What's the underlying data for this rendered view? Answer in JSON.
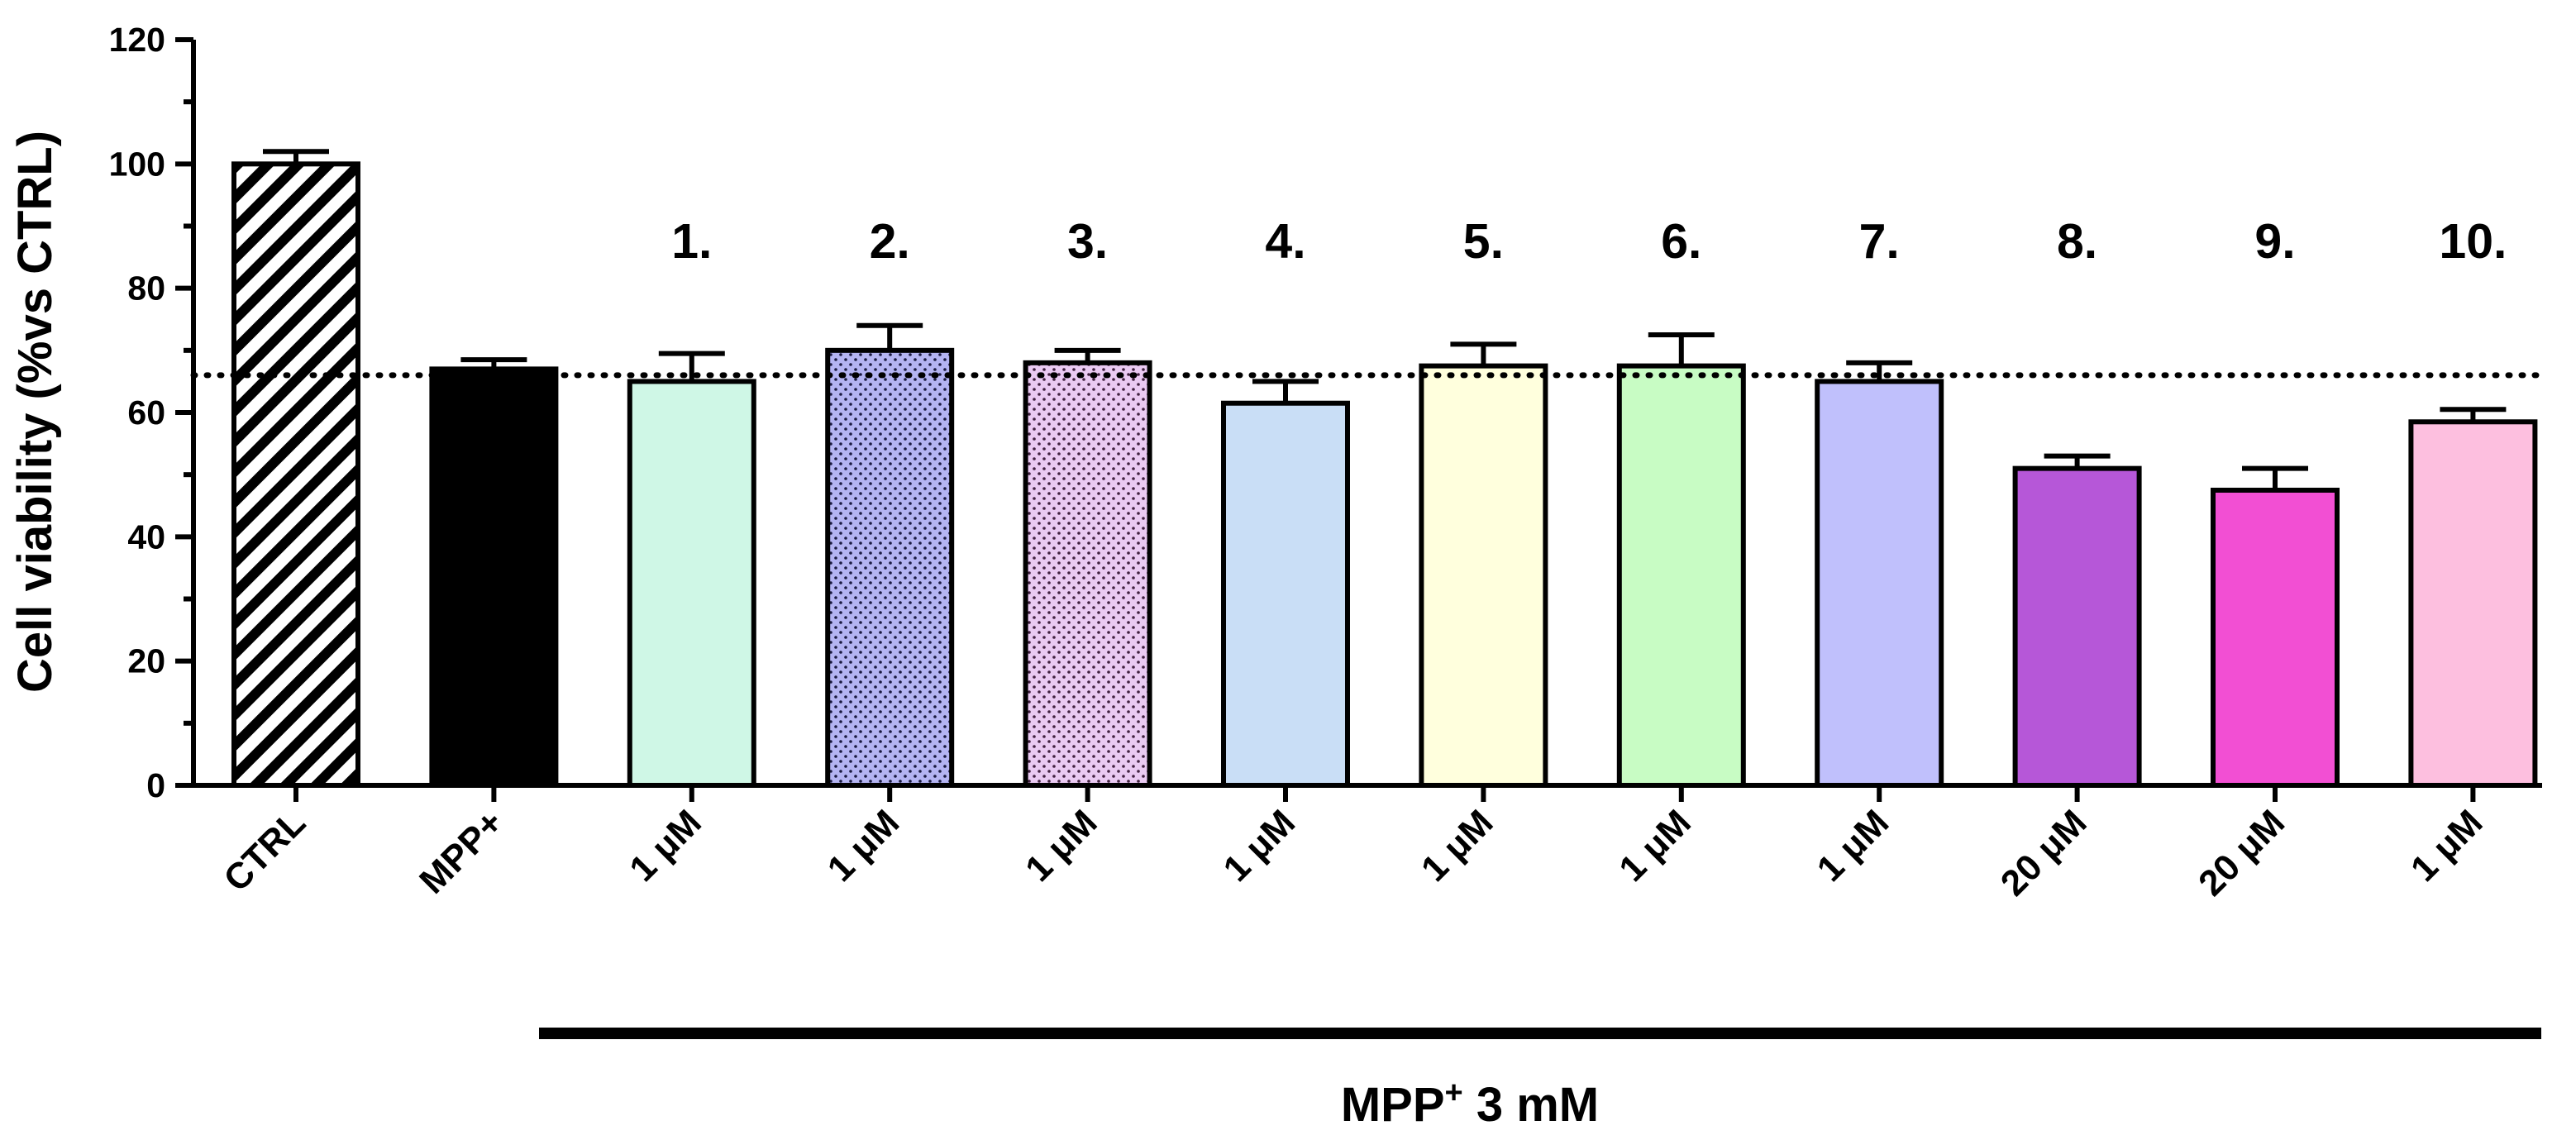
{
  "chart_data": {
    "type": "bar",
    "ylabel": "Cell viability (%vs CTRL)",
    "ylim": [
      0,
      120
    ],
    "yticks": [
      "0",
      "20",
      "40",
      "60",
      "80",
      "100",
      "120"
    ],
    "reference_line": 66,
    "categories": [
      "CTRL",
      "MPP+",
      "1 μM",
      "1 μM",
      "1 μM",
      "1 μM",
      "1 μM",
      "1 μM",
      "1 μM",
      "20 μM",
      "20 μM",
      "1 μM"
    ],
    "compound_labels": [
      "",
      "",
      "1.",
      "2.",
      "3.",
      "4.",
      "5.",
      "6.",
      "7.",
      "8.",
      "9.",
      "10."
    ],
    "values": [
      100,
      67,
      65,
      70,
      68,
      61.5,
      67.5,
      67.5,
      65,
      51,
      47.5,
      58.5
    ],
    "errors": [
      2,
      1.5,
      4.5,
      4,
      2,
      3.5,
      3.5,
      5,
      3,
      2,
      3.5,
      2
    ],
    "colors": [
      "#ffffff",
      "#000000",
      "#cff7e6",
      "#b4b4f2",
      "#eacaf2",
      "#c9def6",
      "#ffffdd",
      "#c8fcc4",
      "#c0c0fc",
      "#b657d8",
      "#f24fd3",
      "#fdbfdf"
    ],
    "patterns": [
      "hatch",
      "solid",
      "solid",
      "dots",
      "dots",
      "solid",
      "solid",
      "solid",
      "solid",
      "solid",
      "solid",
      "solid"
    ],
    "group_label": {
      "prefix": "MPP",
      "superscript": "+",
      "suffix": " 3 mM"
    }
  }
}
